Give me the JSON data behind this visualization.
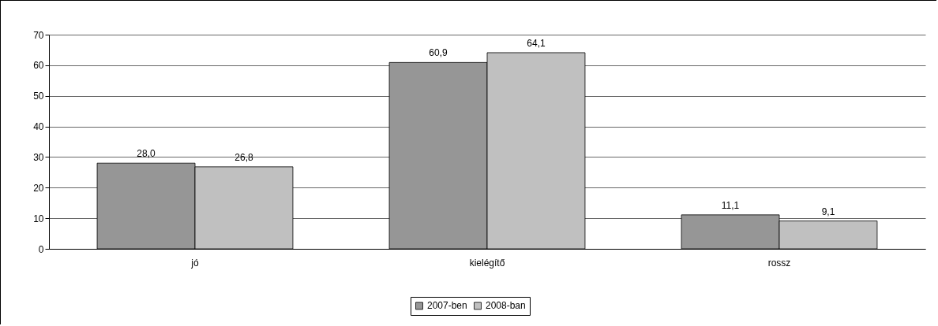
{
  "chart_data": {
    "type": "bar",
    "categories": [
      "jó",
      "kielégítő",
      "rossz"
    ],
    "series": [
      {
        "name": "2007-ben",
        "color": "#969696",
        "values": [
          28.0,
          60.9,
          11.1
        ],
        "value_labels": [
          "28,0",
          "60,9",
          "11,1"
        ]
      },
      {
        "name": "2008-ban",
        "color": "#c0c0c0",
        "values": [
          26.8,
          64.1,
          9.1
        ],
        "value_labels": [
          "26,8",
          "64,1",
          "9,1"
        ]
      }
    ],
    "ylim": [
      0,
      70
    ],
    "yticks": [
      0,
      10,
      20,
      30,
      40,
      50,
      60,
      70
    ],
    "grid": "y",
    "legend": "bottom"
  }
}
